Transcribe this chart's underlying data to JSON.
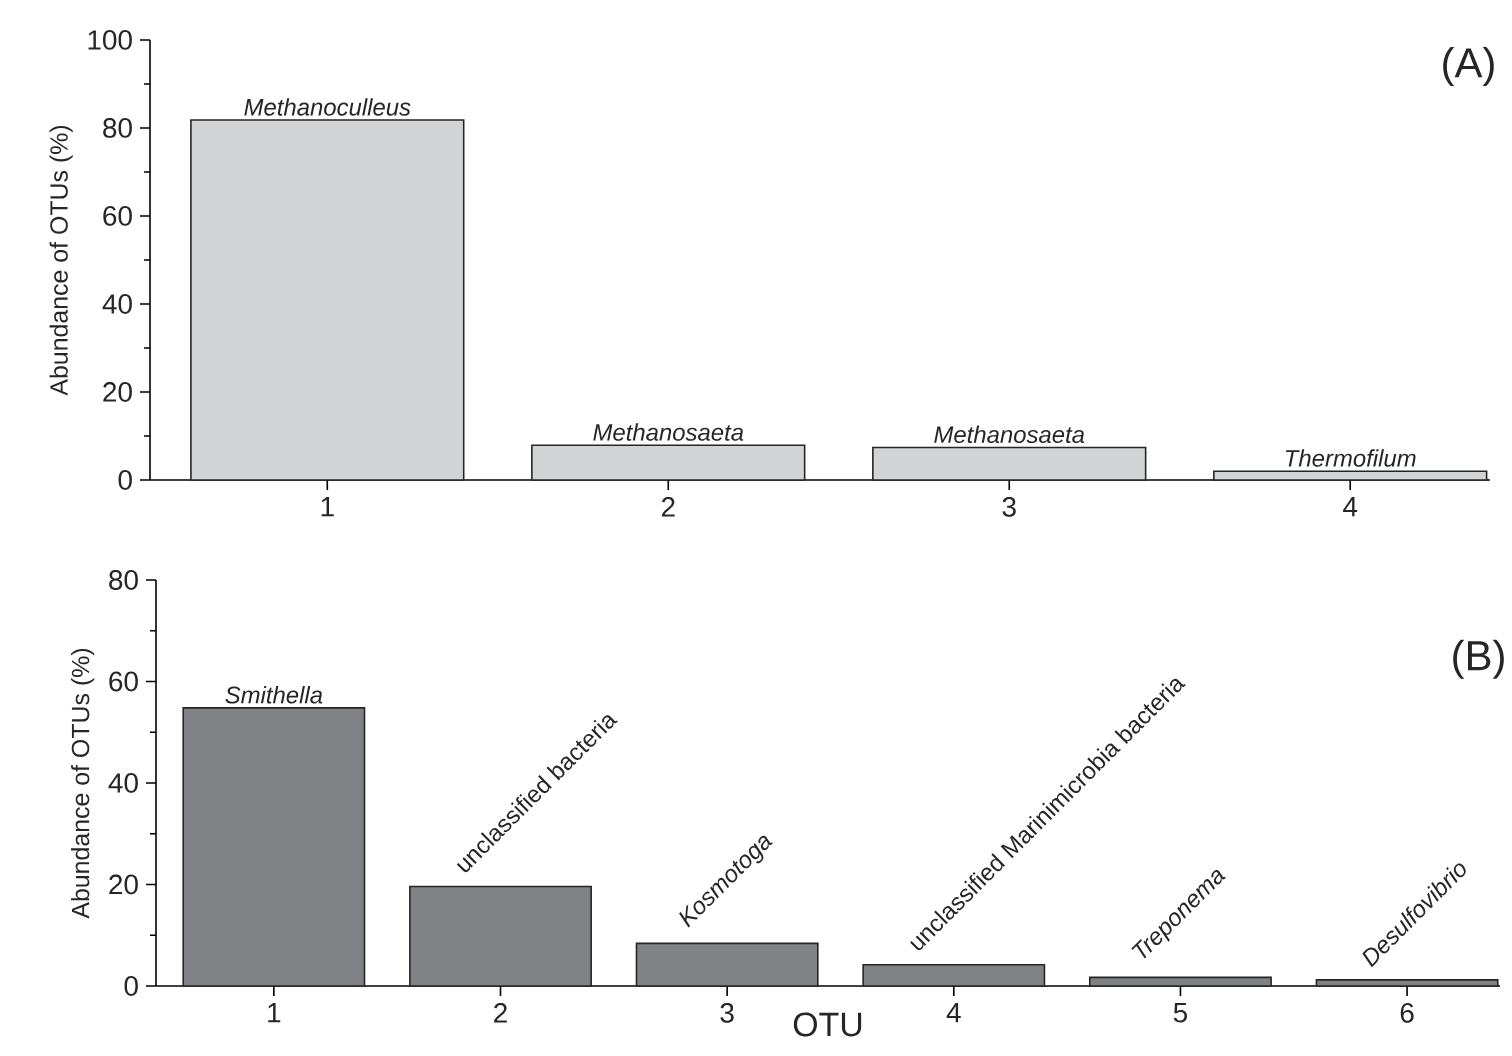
{
  "chart_data": [
    {
      "type": "bar",
      "ylabel": "Abundance of OTUs (%)",
      "categories": [
        "1",
        "2",
        "3",
        "4"
      ],
      "values": [
        81.8,
        7.9,
        7.4,
        2.0
      ],
      "color": "#d1d3d4",
      "ylim": [
        0,
        100
      ],
      "yticks": [
        0,
        20,
        40,
        60,
        80,
        100
      ],
      "annotations": [
        "(A)",
        {
          "text": "*Methanoculleus*",
          "x": "1",
          "y": 81.8
        },
        {
          "text": "*Methanosaeta*",
          "x": "2",
          "y": 7.9
        },
        {
          "text": "*Methanosaeta*",
          "x": "3",
          "y": 7.4
        },
        {
          "text": "*Thermofilum*",
          "x": "4",
          "y": 2.0
        }
      ]
    },
    {
      "type": "bar",
      "xlabel": "OTU",
      "ylabel": "Abundance of OTUs (%)",
      "categories": [
        "1",
        "2",
        "3",
        "4",
        "5",
        "6"
      ],
      "values": [
        54.8,
        19.6,
        8.4,
        4.2,
        1.7,
        1.2
      ],
      "color": "#808285",
      "ylim": [
        0,
        80
      ],
      "yticks": [
        0,
        20,
        40,
        60,
        80
      ],
      "annotations": [
        "(B)",
        {
          "text": "*Smithella*",
          "x": "1",
          "y": 54.8
        },
        {
          "text": "unclassified bacteria",
          "x": "2",
          "y": 19.6
        },
        {
          "text": "*Kosmotoga*",
          "x": "3",
          "y": 8.4
        },
        {
          "text": "unclassified Marinimicrobia bacteria",
          "x": "4",
          "y": 4.2
        },
        {
          "text": "*Treponema*",
          "x": "5",
          "y": 1.7
        },
        {
          "text": "*Desulfovibrio*",
          "x": "6",
          "y": 1.2
        }
      ]
    }
  ]
}
